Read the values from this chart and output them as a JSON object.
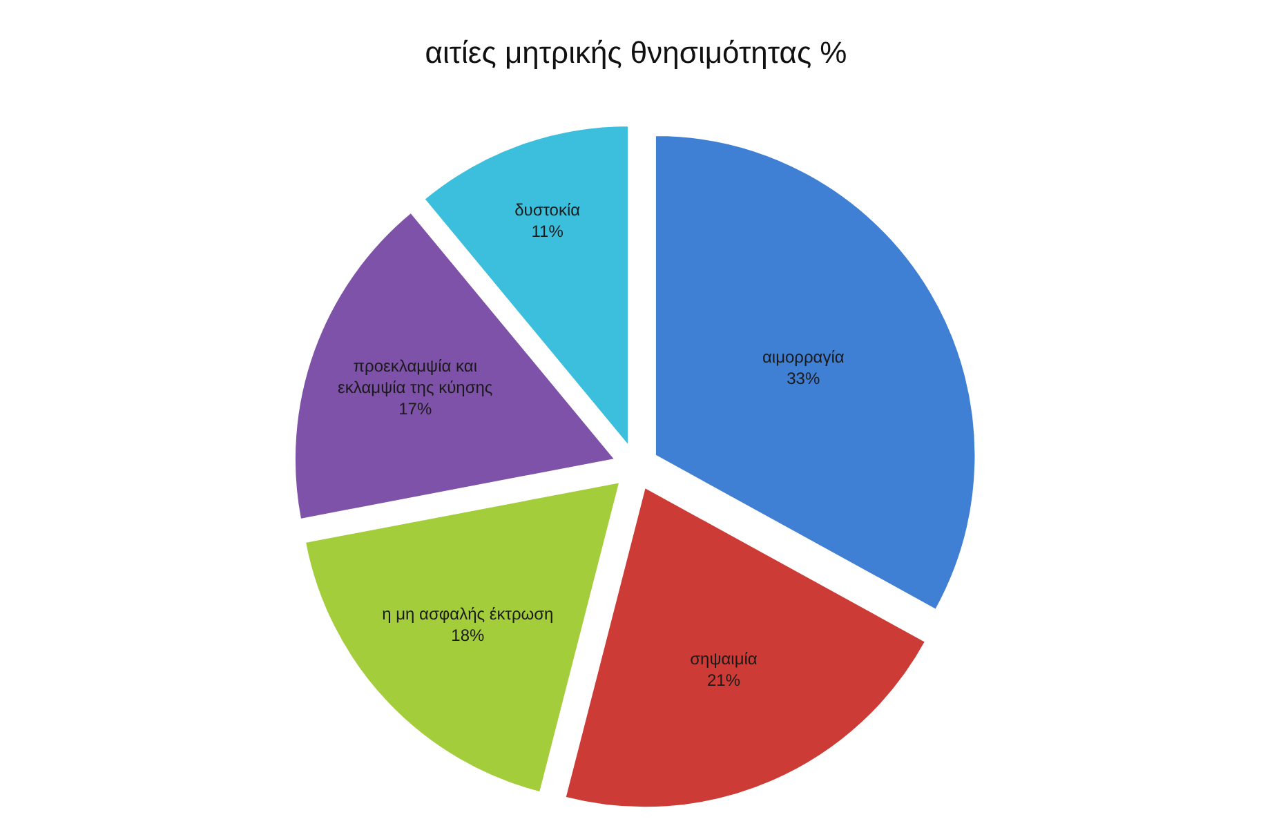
{
  "chart_data": {
    "type": "pie",
    "title": "αιτίες μητρικής θνησιμότητας %",
    "categories": [
      "αιμορραγία",
      "σηψαιμία",
      "η μη ασφαλής έκτρωση",
      "προεκλαμψία και εκλαμψία της κύησης",
      "δυστοκία"
    ],
    "values": [
      33,
      21,
      18,
      17,
      11
    ],
    "value_labels": [
      "33%",
      "21%",
      "18%",
      "17%",
      "11%"
    ],
    "colors": [
      "#3f7fd4",
      "#cc3b35",
      "#a3cd3b",
      "#7e52a8",
      "#3cbfdc"
    ],
    "legend": false
  }
}
